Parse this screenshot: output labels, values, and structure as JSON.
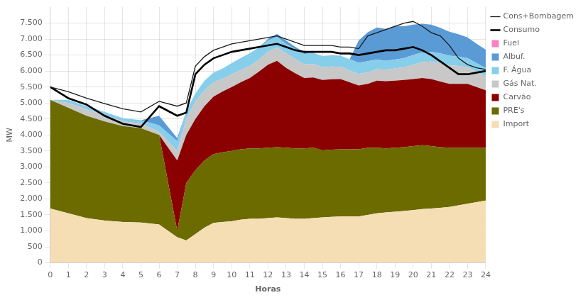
{
  "chart_data": {
    "type": "area",
    "stacked": true,
    "xlabel": "Horas",
    "ylabel": "MW",
    "xlim": [
      0,
      24
    ],
    "ylim": [
      0,
      8000
    ],
    "xticks": [
      0,
      1,
      2,
      3,
      4,
      5,
      6,
      7,
      8,
      9,
      10,
      11,
      12,
      13,
      14,
      15,
      16,
      17,
      18,
      19,
      20,
      21,
      22,
      23,
      24
    ],
    "yticks": [
      0,
      500,
      {
        "value": 1000,
        "label": "1.000"
      },
      {
        "value": 1500,
        "label": "1.500"
      },
      {
        "value": 2000,
        "label": "2.000"
      },
      {
        "value": 2500,
        "label": "2.500"
      },
      {
        "value": 3000,
        "label": "3.000"
      },
      {
        "value": 3500,
        "label": "3.500"
      },
      {
        "value": 4000,
        "label": "4.000"
      },
      {
        "value": 4500,
        "label": "4.500"
      },
      {
        "value": 5000,
        "label": "5.000"
      },
      {
        "value": 5500,
        "label": "5.500"
      },
      {
        "value": 6000,
        "label": "6.000"
      },
      {
        "value": 6500,
        "label": "6.500"
      },
      {
        "value": 7000,
        "label": "7.000"
      },
      {
        "value": 7500,
        "label": "7.500"
      }
    ],
    "grid": true,
    "legend": "right",
    "x": [
      0,
      1,
      2,
      3,
      4,
      5,
      6,
      7,
      7.5,
      8,
      8.5,
      9,
      9.5,
      10,
      10.5,
      11,
      11.5,
      12,
      12.5,
      13,
      13.5,
      14,
      14.5,
      15,
      15.5,
      16,
      16.5,
      17,
      17.5,
      18,
      18.5,
      19,
      19.5,
      20,
      20.5,
      21,
      21.5,
      22,
      22.5,
      23,
      23.5,
      24
    ],
    "series": [
      {
        "name": "Cons+Bombagem",
        "type": "line",
        "line_style": "solid",
        "marker": "none",
        "color": "#1a1a1a",
        "values": [
          5500,
          5350,
          5150,
          4980,
          4820,
          4720,
          5050,
          4900,
          5000,
          6150,
          6450,
          6650,
          6750,
          6850,
          6900,
          6950,
          7000,
          7050,
          7100,
          7000,
          6900,
          6800,
          6800,
          6800,
          6800,
          6750,
          6750,
          6700,
          7100,
          7200,
          7300,
          7400,
          7500,
          7550,
          7400,
          7200,
          7100,
          6800,
          6400,
          6200,
          6100,
          6050
        ]
      },
      {
        "name": "Consumo",
        "type": "line",
        "line_style": "solid",
        "marker": "none",
        "color": "#000000",
        "values": [
          5500,
          5150,
          4950,
          4600,
          4350,
          4250,
          4900,
          4600,
          4700,
          5900,
          6200,
          6400,
          6500,
          6600,
          6650,
          6700,
          6750,
          6800,
          6850,
          6750,
          6650,
          6600,
          6600,
          6600,
          6600,
          6550,
          6550,
          6500,
          6550,
          6600,
          6650,
          6650,
          6700,
          6750,
          6650,
          6500,
          6300,
          6100,
          5900,
          5900,
          5950,
          6000
        ]
      },
      {
        "name": "Fuel",
        "type": "area",
        "color": "#ff80c0",
        "values": [
          0,
          0,
          0,
          0,
          0,
          0,
          0,
          0,
          0,
          0,
          0,
          0,
          0,
          0,
          0,
          0,
          0,
          0,
          0,
          0,
          0,
          0,
          0,
          0,
          0,
          0,
          0,
          0,
          0,
          0,
          0,
          0,
          0,
          0,
          0,
          0,
          0,
          0,
          0,
          0,
          0,
          0
        ]
      },
      {
        "name": "Albuf.",
        "type": "area",
        "color": "#5b9bd5",
        "values": [
          0,
          0,
          0,
          0,
          0,
          0,
          300,
          100,
          0,
          0,
          0,
          0,
          0,
          0,
          0,
          0,
          0,
          50,
          100,
          100,
          80,
          50,
          0,
          0,
          0,
          0,
          0,
          700,
          900,
          1000,
          1000,
          1050,
          1000,
          950,
          900,
          850,
          800,
          750,
          700,
          650,
          600,
          580
        ]
      },
      {
        "name": "F. Água",
        "type": "area",
        "color": "#87ceeb",
        "values": [
          0,
          100,
          100,
          100,
          100,
          100,
          200,
          300,
          250,
          250,
          300,
          300,
          320,
          350,
          380,
          400,
          380,
          350,
          320,
          300,
          300,
          320,
          350,
          350,
          350,
          350,
          350,
          350,
          350,
          300,
          280,
          280,
          280,
          300,
          300,
          300,
          300,
          300,
          290,
          280,
          270,
          260
        ]
      },
      {
        "name": "Gás Nat.",
        "type": "area",
        "color": "#c8c8c8",
        "values": [
          0,
          150,
          200,
          200,
          150,
          150,
          100,
          300,
          500,
          550,
          500,
          450,
          400,
          400,
          380,
          380,
          380,
          400,
          420,
          450,
          450,
          430,
          420,
          400,
          400,
          380,
          370,
          360,
          360,
          360,
          360,
          380,
          400,
          450,
          500,
          550,
          580,
          580,
          560,
          520,
          480,
          430
        ]
      },
      {
        "name": "Carvão",
        "type": "area",
        "color": "#8b0000",
        "values": [
          0,
          0,
          0,
          0,
          0,
          0,
          0,
          2200,
          1500,
          1600,
          1700,
          1800,
          1900,
          2000,
          2100,
          2200,
          2400,
          2600,
          2700,
          2500,
          2350,
          2200,
          2200,
          2200,
          2200,
          2200,
          2100,
          2000,
          2000,
          2100,
          2100,
          2100,
          2100,
          2100,
          2100,
          2100,
          2050,
          2000,
          2000,
          2000,
          1900,
          1800
        ]
      },
      {
        "name": "PRE's",
        "type": "area",
        "color": "#6b6b00",
        "values": [
          3400,
          3300,
          3200,
          3100,
          3000,
          2950,
          2800,
          200,
          1800,
          2000,
          2100,
          2150,
          2180,
          2200,
          2200,
          2200,
          2200,
          2200,
          2200,
          2200,
          2200,
          2200,
          2200,
          2100,
          2100,
          2100,
          2100,
          2100,
          2100,
          2050,
          2000,
          2000,
          2000,
          2000,
          2000,
          1950,
          1900,
          1850,
          1800,
          1750,
          1700,
          1650
        ]
      },
      {
        "name": "Import",
        "type": "area",
        "color": "#f5deb3",
        "values": [
          1700,
          1550,
          1400,
          1320,
          1280,
          1260,
          1200,
          800,
          700,
          900,
          1100,
          1250,
          1280,
          1300,
          1350,
          1380,
          1380,
          1400,
          1420,
          1400,
          1380,
          1380,
          1400,
          1420,
          1440,
          1450,
          1450,
          1450,
          1500,
          1550,
          1580,
          1600,
          1620,
          1650,
          1680,
          1700,
          1720,
          1750,
          1800,
          1850,
          1900,
          1950
        ]
      }
    ]
  }
}
